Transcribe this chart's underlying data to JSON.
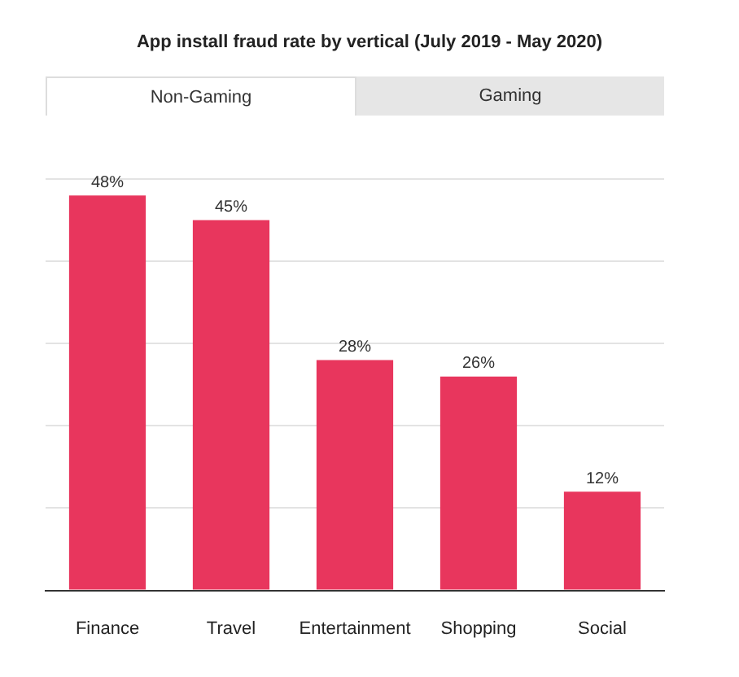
{
  "chart_data": {
    "type": "bar",
    "title": "App install fraud rate by vertical (July 2019 - May 2020)",
    "annotations": [
      "Non-Gaming",
      "Gaming"
    ],
    "categories": [
      "Finance",
      "Travel",
      "Entertainment",
      "Shopping",
      "Social"
    ],
    "values": [
      48,
      45,
      28,
      26,
      12
    ],
    "color": "#e8365d",
    "ylim": [
      0,
      50
    ],
    "yticks": [
      {
        "value": 0,
        "label": null
      },
      {
        "value": 10,
        "label": null
      },
      {
        "value": 20,
        "label": null
      },
      {
        "value": 30,
        "label": null
      },
      {
        "value": 40,
        "label": null
      },
      {
        "value": 50,
        "label": null
      }
    ],
    "grid": "y",
    "tick_labels": "x",
    "data_labels": true,
    "value_labels": [
      "48%",
      "45%",
      "28%",
      "26%",
      "12%"
    ],
    "legend": false
  }
}
